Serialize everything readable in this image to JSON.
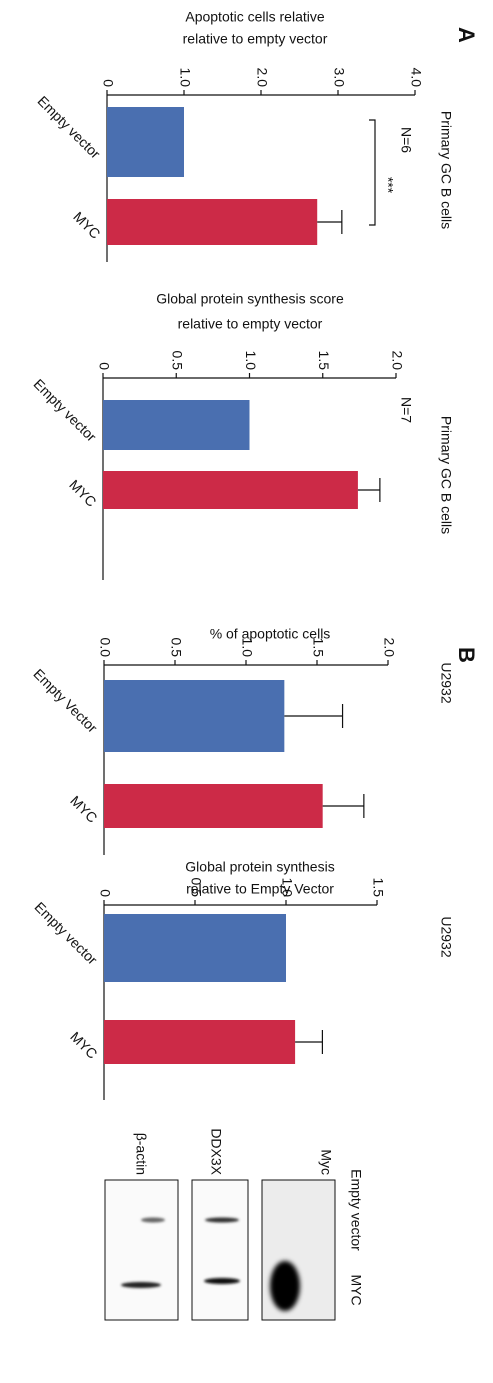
{
  "panels": [
    {
      "label": "A"
    },
    {
      "label": "B"
    }
  ],
  "chart_data": [
    {
      "type": "bar",
      "title_lines": [
        "Apoptotic cells relative",
        "relative to empty vector"
      ],
      "subtitle": "Primary GC B cells",
      "annotation": "N=6",
      "significance": "***",
      "categories": [
        "Empty vector",
        "MYC"
      ],
      "values": [
        1.0,
        2.73
      ],
      "errors": [
        null,
        0.32
      ],
      "colors": [
        "#4a6fb0",
        "#cc2a47"
      ],
      "ylim": [
        0,
        4
      ],
      "yticks": [
        0,
        {
          "value": 1,
          "label": "1.0"
        },
        {
          "value": 2,
          "label": "2.0"
        },
        {
          "value": 3,
          "label": "3.0"
        },
        {
          "value": 4,
          "label": "4.0"
        }
      ]
    },
    {
      "type": "bar",
      "title_lines": [
        "Global protein synthesis score",
        "relative to empty vector"
      ],
      "subtitle": "Primary GC B cells",
      "annotation": "N=7",
      "categories": [
        "Empty vector",
        "MYC"
      ],
      "values": [
        1.0,
        1.74
      ],
      "errors": [
        null,
        0.15
      ],
      "colors": [
        "#4a6fb0",
        "#cc2a47"
      ],
      "ylim": [
        0,
        2
      ],
      "yticks": [
        0,
        0.5,
        {
          "value": 1,
          "label": "1.0"
        },
        1.5,
        {
          "value": 2,
          "label": "2.0"
        }
      ]
    },
    {
      "type": "bar",
      "title_lines": [
        "% of apoptotic cells"
      ],
      "subtitle": "U2932",
      "categories": [
        "Empty Vector",
        "MYC"
      ],
      "values": [
        1.27,
        1.54
      ],
      "errors": [
        0.41,
        0.29
      ],
      "colors": [
        "#4a6fb0",
        "#cc2a47"
      ],
      "ylim": [
        0,
        2
      ],
      "yticks": [
        {
          "value": 0,
          "label": "0.0"
        },
        0.5,
        {
          "value": 1,
          "label": "1.0"
        },
        1.5,
        {
          "value": 2,
          "label": "2.0"
        }
      ]
    },
    {
      "type": "bar",
      "title_lines": [
        "Global protein synthesis",
        "relative to Empty Vector"
      ],
      "subtitle": "U2932",
      "categories": [
        "Empty vector",
        "MYC"
      ],
      "values": [
        1.0,
        1.05
      ],
      "errors": [
        null,
        0.15
      ],
      "colors": [
        "#4a6fb0",
        "#cc2a47"
      ],
      "ylim": [
        0,
        1.5
      ],
      "yticks": [
        0,
        0.5,
        {
          "value": 1,
          "label": "1.0"
        },
        1.5
      ]
    }
  ],
  "blot": {
    "columns": [
      "Empty vector",
      "MYC"
    ],
    "rows": [
      "Myc",
      "DDX3X",
      "β-actin"
    ]
  }
}
